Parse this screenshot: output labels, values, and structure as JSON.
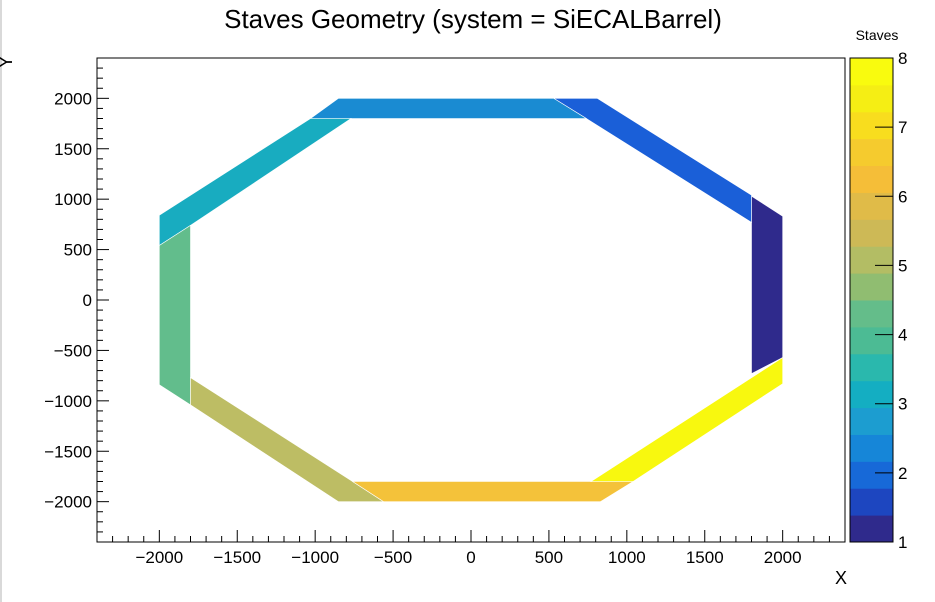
{
  "chart_data": {
    "type": "polygon-fill",
    "title": "Staves Geometry (system = SiECALBarrel)",
    "xlabel": "X",
    "ylabel": "Y",
    "xlim": [
      -2400,
      2400
    ],
    "ylim": [
      -2400,
      2400
    ],
    "x_ticks": [
      -2000,
      -1500,
      -1000,
      -500,
      0,
      500,
      1000,
      1500,
      2000
    ],
    "x_tick_labels": [
      "−2000",
      "−1500",
      "−1000",
      "−500",
      "0",
      "500",
      "1000",
      "1500",
      "2000"
    ],
    "y_ticks": [
      -2000,
      -1500,
      -1000,
      -500,
      0,
      500,
      1000,
      1500,
      2000
    ],
    "y_tick_labels": [
      "−2000",
      "−1500",
      "−1000",
      "−500",
      "0",
      "500",
      "1000",
      "1500",
      "2000"
    ],
    "colorbar": {
      "title": "Staves",
      "range": [
        1,
        8
      ],
      "ticks": [
        1,
        2,
        3,
        4,
        5,
        6,
        7,
        8
      ],
      "tick_labels": [
        "1",
        "2",
        "3",
        "4",
        "5",
        "6",
        "7",
        "8"
      ],
      "colors": [
        "#2f2a8c",
        "#1d46c0",
        "#1769d8",
        "#1686d8",
        "#1c9dd0",
        "#14aec2",
        "#2ab8ad",
        "#4cbb94",
        "#64bd8a",
        "#90bd71",
        "#b3bd64",
        "#cdb956",
        "#e0bb48",
        "#f5be38",
        "#f5cb2e",
        "#f8dd1e",
        "#f5ee14",
        "#f9fb0e"
      ]
    },
    "staves": [
      {
        "stave": 1,
        "color": "#2f2a8c",
        "polygon": [
          [
            1800,
            1030
          ],
          [
            2000,
            830
          ],
          [
            2000,
            -570
          ],
          [
            1800,
            -730
          ]
        ]
      },
      {
        "stave": 2,
        "color": "#1a5fd8",
        "polygon": [
          [
            530,
            2000
          ],
          [
            810,
            2000
          ],
          [
            1800,
            1040
          ],
          [
            1800,
            770
          ],
          [
            740,
            1800
          ]
        ]
      },
      {
        "stave": 3,
        "color": "#1a8bd2",
        "polygon": [
          [
            -850,
            2000
          ],
          [
            530,
            2000
          ],
          [
            740,
            1800
          ],
          [
            -1030,
            1800
          ]
        ]
      },
      {
        "stave": 4,
        "color": "#18acc0",
        "polygon": [
          [
            -1030,
            1800
          ],
          [
            -770,
            1800
          ],
          [
            -1800,
            740
          ],
          [
            -2000,
            540
          ],
          [
            -2000,
            840
          ]
        ]
      },
      {
        "stave": 5,
        "color": "#62bd8c",
        "polygon": [
          [
            -2000,
            540
          ],
          [
            -1800,
            740
          ],
          [
            -1800,
            -1040
          ],
          [
            -2000,
            -840
          ]
        ]
      },
      {
        "stave": 6,
        "color": "#bdbd64",
        "polygon": [
          [
            -1800,
            -770
          ],
          [
            -1800,
            -1040
          ],
          [
            -850,
            -2000
          ],
          [
            -560,
            -2000
          ],
          [
            -760,
            -1800
          ]
        ]
      },
      {
        "stave": 7,
        "color": "#f4c23a",
        "polygon": [
          [
            -760,
            -1800
          ],
          [
            1040,
            -1800
          ],
          [
            830,
            -2000
          ],
          [
            -560,
            -2000
          ]
        ]
      },
      {
        "stave": 8,
        "color": "#f8f80f",
        "polygon": [
          [
            2000,
            -570
          ],
          [
            2000,
            -830
          ],
          [
            1040,
            -1800
          ],
          [
            770,
            -1800
          ]
        ]
      }
    ]
  }
}
